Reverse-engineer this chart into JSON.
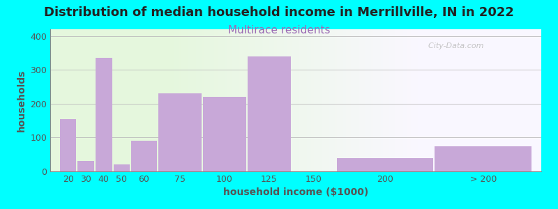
{
  "title": "Distribution of median household income in Merrillville, IN in 2022",
  "subtitle": "Multirace residents",
  "xlabel": "household income ($1000)",
  "ylabel": "households",
  "background_color": "#00FFFF",
  "bar_color": "#c8a8d8",
  "categories": [
    "20",
    "30",
    "40",
    "50",
    "60",
    "75",
    "100",
    "125",
    "150",
    "200",
    "> 200"
  ],
  "values": [
    155,
    30,
    335,
    20,
    90,
    230,
    220,
    340,
    0,
    40,
    75
  ],
  "left_edges": [
    15,
    25,
    35,
    45,
    55,
    70,
    95,
    120,
    145,
    170,
    225
  ],
  "widths": [
    10,
    10,
    10,
    10,
    15,
    25,
    25,
    25,
    25,
    55,
    55
  ],
  "xlim": [
    10,
    285
  ],
  "ylim": [
    0,
    420
  ],
  "yticks": [
    0,
    100,
    200,
    300,
    400
  ],
  "watermark": "  City-Data.com",
  "title_fontsize": 13,
  "subtitle_fontsize": 11,
  "subtitle_color": "#9b6bb5",
  "title_color": "#222222",
  "axis_label_fontsize": 10,
  "tick_fontsize": 9,
  "tick_color": "#555555"
}
